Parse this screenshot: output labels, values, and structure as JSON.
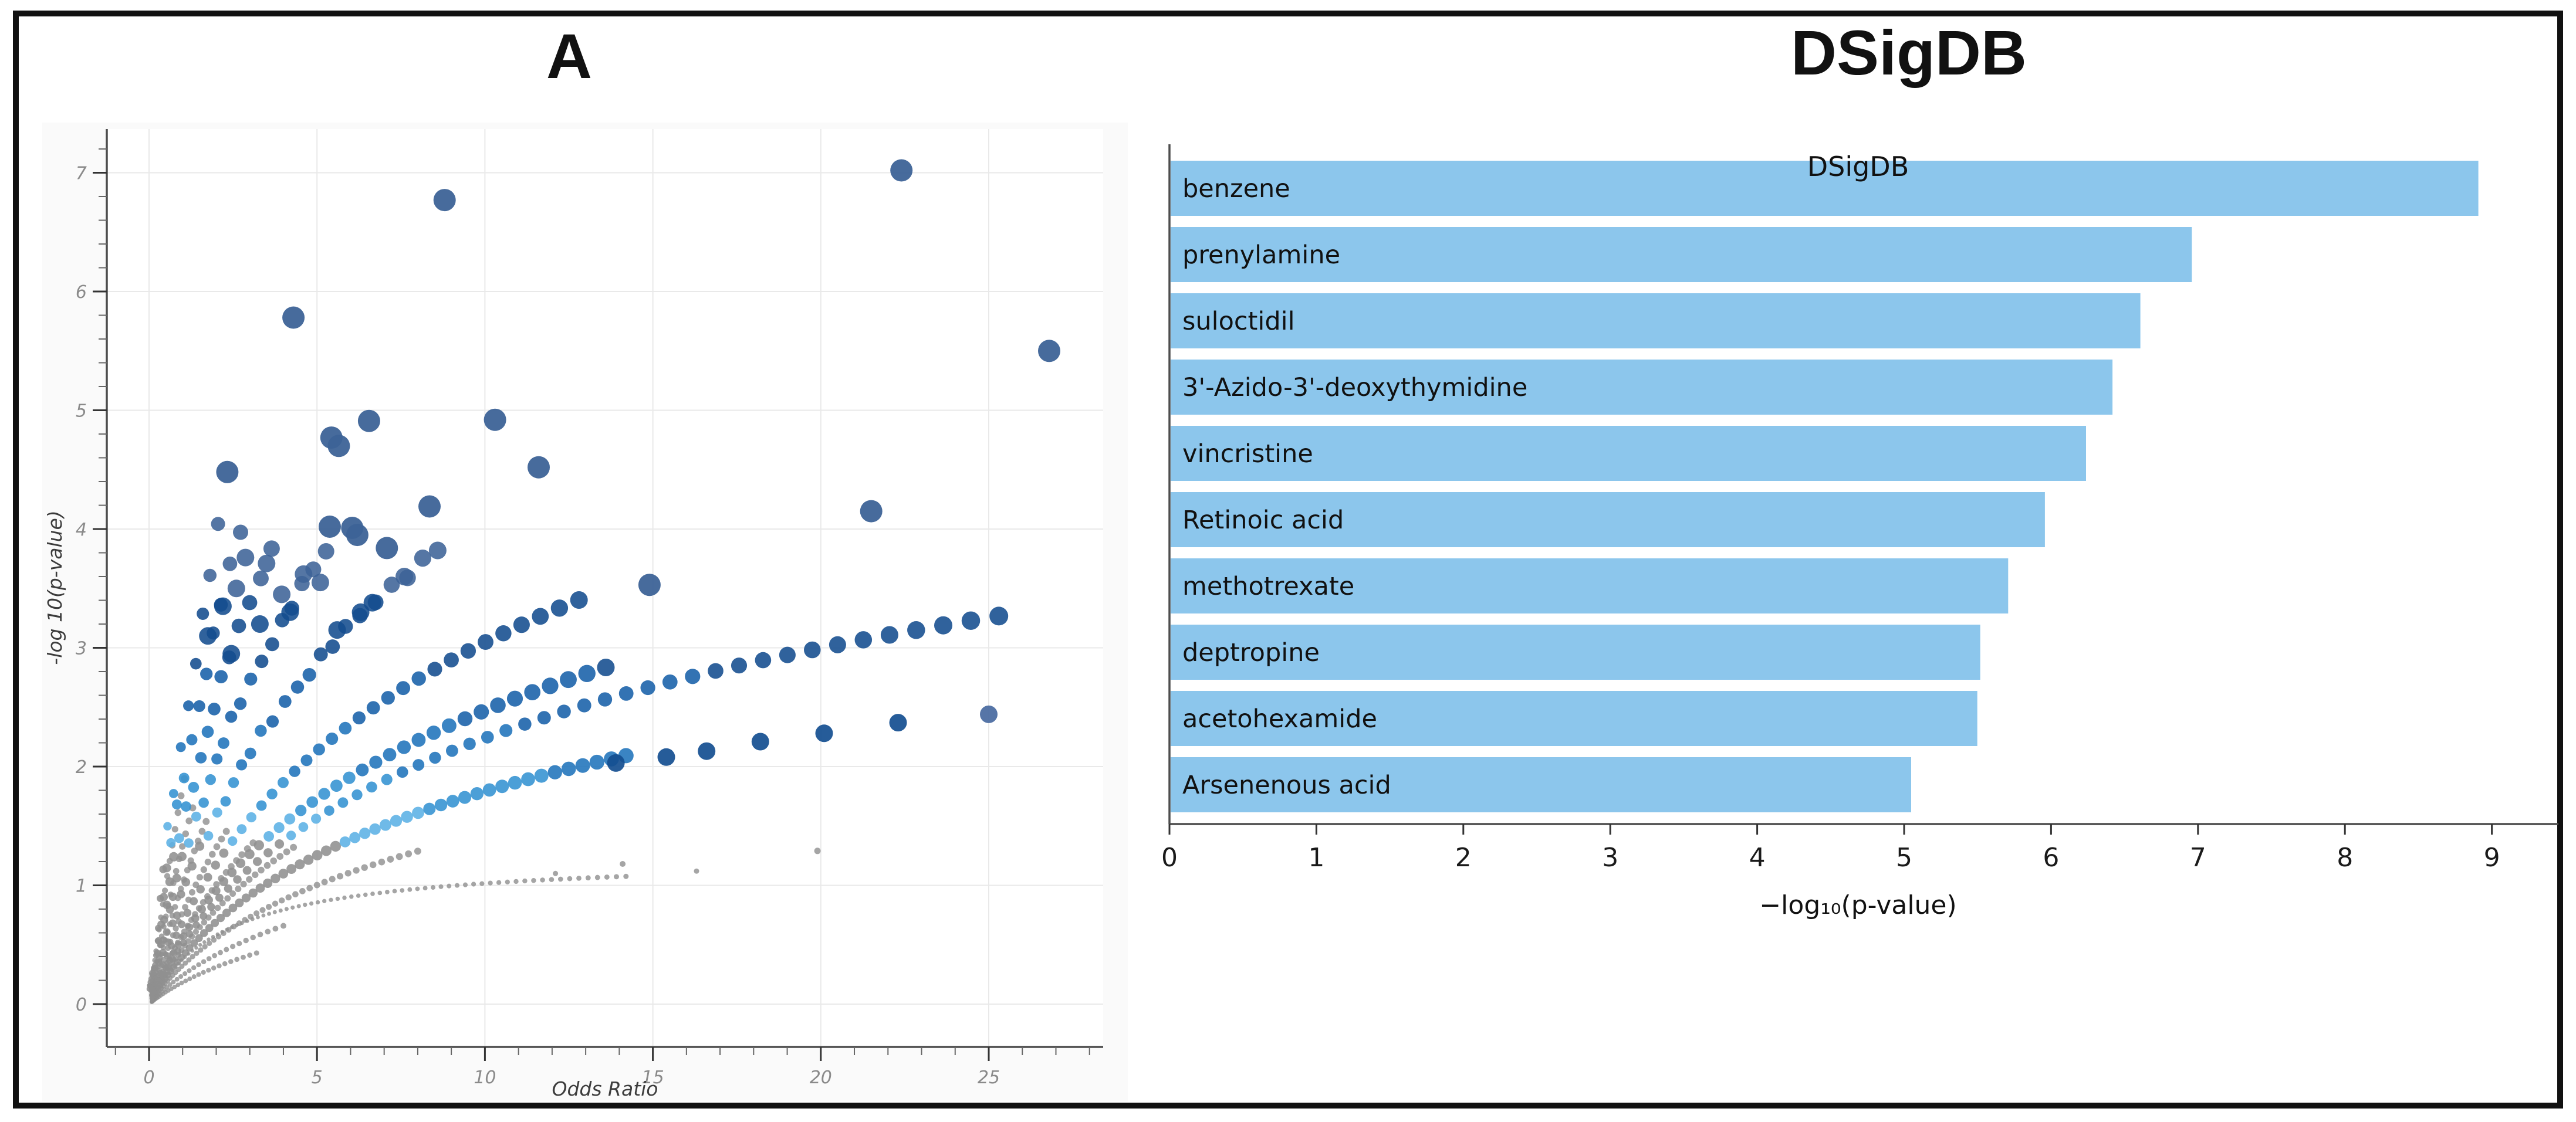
{
  "figure": {
    "border_color": "#111111",
    "background": "#ffffff",
    "panel_a_canvas": "#fafafa",
    "plot_background": "#ffffff",
    "grid_color": "#e9e9e9",
    "spine_color": "#4d4d4d"
  },
  "panel_a": {
    "title": "A",
    "xlabel": "Odds Ratio",
    "ylabel": "-log 10(p-value)",
    "x_ticks": [
      0,
      5,
      10,
      15,
      20,
      25
    ],
    "y_ticks": [
      0,
      1,
      2,
      3,
      4,
      5,
      6,
      7
    ],
    "x_minor_step": 1,
    "y_minor_step": 0.2,
    "chart_data": {
      "type": "scatter",
      "xlabel": "Odds Ratio",
      "ylabel": "-log10(p-value)",
      "xlim": [
        -1.25,
        29.6
      ],
      "ylim": [
        -0.36,
        7.73
      ],
      "grid": true,
      "significance_threshold": 1.35,
      "gray_color": "#8f8f8f",
      "color_scale": [
        {
          "max": 1.35,
          "color": "#8f8f8f"
        },
        {
          "max": 1.62,
          "color": "#5bb0e5"
        },
        {
          "max": 1.95,
          "color": "#3392d2"
        },
        {
          "max": 2.35,
          "color": "#1f73bb"
        },
        {
          "max": 2.8,
          "color": "#1760a8"
        },
        {
          "max": 3.42,
          "color": "#134c8e"
        },
        {
          "max": 99,
          "color": "#3d6397"
        }
      ],
      "arcs": [
        {
          "id": "G1",
          "form": "mm",
          "s": 1.25,
          "w": 2.3,
          "x0": 0.08,
          "x1": 14.2,
          "n": 80,
          "r0": 3,
          "r1": 4.5,
          "gray": true,
          "p": 1.6
        },
        {
          "id": "G2",
          "form": "log",
          "s": 0.8,
          "x0": 0.1,
          "x1": 8.0,
          "n": 55,
          "r0": 4,
          "r1": 6,
          "gray": true,
          "p": 1.9
        },
        {
          "id": "G3",
          "form": "log",
          "s": 1.15,
          "x0": 0.1,
          "x1": 4.3,
          "n": 40,
          "r0": 4.5,
          "r1": 6,
          "gray": true,
          "p": 1.9
        },
        {
          "id": "G4",
          "form": "log",
          "s": 1.45,
          "x0": 0.1,
          "x1": 3.1,
          "n": 34,
          "r0": 4.5,
          "r1": 6,
          "gray": true,
          "p": 1.9
        },
        {
          "id": "G5",
          "form": "log",
          "s": 1.9,
          "x0": 0.08,
          "x1": 2.3,
          "n": 30,
          "r0": 4.5,
          "r1": 6,
          "gray": true,
          "p": 1.9
        },
        {
          "id": "G6",
          "form": "log",
          "s": 2.5,
          "x0": 0.08,
          "x1": 1.7,
          "n": 26,
          "r0": 4,
          "r1": 6,
          "gray": true,
          "p": 1.9
        },
        {
          "id": "G7",
          "form": "log",
          "s": 3.3,
          "x0": 0.08,
          "x1": 1.3,
          "n": 22,
          "r0": 4,
          "r1": 6,
          "gray": true,
          "p": 1.9
        },
        {
          "id": "G8",
          "form": "log",
          "s": 4.5,
          "x0": 0.06,
          "x1": 1.05,
          "n": 20,
          "r0": 4,
          "r1": 6,
          "gray": true,
          "p": 1.9
        },
        {
          "id": "F1",
          "form": "log",
          "s": 0.45,
          "x0": 0.08,
          "x1": 3.2,
          "n": 30,
          "r0": 3.5,
          "r1": 4.5,
          "gray": true,
          "p": 1.9
        },
        {
          "id": "F2",
          "form": "log",
          "s": 0.6,
          "x0": 0.08,
          "x1": 4.0,
          "n": 32,
          "r0": 3.5,
          "r1": 5,
          "gray": true,
          "p": 1.9
        },
        {
          "id": "A3",
          "form": "log",
          "s": 1.0,
          "x0": 0.1,
          "x1": 14.2,
          "n": 62,
          "r0": 5,
          "r1": 13,
          "p": 1.9
        },
        {
          "id": "A4",
          "form": "log",
          "s": 1.25,
          "x0": 0.1,
          "x1": 25.3,
          "n": 58,
          "r0": 5,
          "r1": 16,
          "p": 1.9
        },
        {
          "id": "A5",
          "form": "log",
          "s": 1.38,
          "x0": 0.1,
          "x1": 13.6,
          "n": 46,
          "r0": 5,
          "r1": 15,
          "p": 1.9
        },
        {
          "id": "A6",
          "form": "log",
          "s": 1.7,
          "x0": 0.1,
          "x1": 12.8,
          "n": 42,
          "r0": 5,
          "r1": 15,
          "p": 1.9
        },
        {
          "id": "A7",
          "form": "log",
          "s": 2.3,
          "x0": 0.08,
          "x1": 8.6,
          "n": 34,
          "r0": 5,
          "r1": 15,
          "jitter": true,
          "p": 1.9
        },
        {
          "id": "A8",
          "form": "log",
          "s": 2.95,
          "x0": 0.08,
          "x1": 5.3,
          "n": 28,
          "r0": 5,
          "r1": 14,
          "jitter": true,
          "p": 1.9
        },
        {
          "id": "A9",
          "form": "log",
          "s": 3.7,
          "x0": 0.08,
          "x1": 3.6,
          "n": 22,
          "r0": 5,
          "r1": 14,
          "jitter": true,
          "p": 1.9
        },
        {
          "id": "A10",
          "form": "log",
          "s": 4.6,
          "x0": 0.06,
          "x1": 2.75,
          "n": 18,
          "r0": 5,
          "r1": 13,
          "jitter": true,
          "p": 1.9
        },
        {
          "id": "A11",
          "form": "log",
          "s": 5.6,
          "x0": 0.05,
          "x1": 2.1,
          "n": 15,
          "r0": 4,
          "r1": 12,
          "jitter": true,
          "p": 1.9
        }
      ],
      "sparse_row": [
        {
          "x": 13.9,
          "y": 2.03,
          "r": 15,
          "color": "#144e90"
        },
        {
          "x": 15.4,
          "y": 2.08,
          "r": 15,
          "color": "#144e90"
        },
        {
          "x": 16.6,
          "y": 2.13,
          "r": 15,
          "color": "#144e90"
        },
        {
          "x": 18.2,
          "y": 2.21,
          "r": 15,
          "color": "#144e90"
        },
        {
          "x": 20.1,
          "y": 2.28,
          "r": 15,
          "color": "#144e90"
        },
        {
          "x": 22.3,
          "y": 2.37,
          "r": 15,
          "color": "#144e90"
        },
        {
          "x": 25.0,
          "y": 2.44,
          "r": 15,
          "color": "#48699f"
        }
      ],
      "outliers": [
        {
          "x": 22.4,
          "y": 7.02
        },
        {
          "x": 8.8,
          "y": 6.77
        },
        {
          "x": 4.3,
          "y": 5.78
        },
        {
          "x": 26.8,
          "y": 5.5
        },
        {
          "x": 10.3,
          "y": 4.92
        },
        {
          "x": 6.55,
          "y": 4.91
        },
        {
          "x": 5.43,
          "y": 4.77
        },
        {
          "x": 5.65,
          "y": 4.7
        },
        {
          "x": 11.6,
          "y": 4.52
        },
        {
          "x": 2.33,
          "y": 4.48
        },
        {
          "x": 8.35,
          "y": 4.19
        },
        {
          "x": 21.5,
          "y": 4.15
        },
        {
          "x": 5.38,
          "y": 4.02
        },
        {
          "x": 6.05,
          "y": 4.01
        },
        {
          "x": 6.2,
          "y": 3.95
        },
        {
          "x": 7.08,
          "y": 3.84
        },
        {
          "x": 14.9,
          "y": 3.53
        }
      ],
      "outlier_color": "#3d6397",
      "outlier_r": 19,
      "cluster_extras": [
        {
          "x": 2.87,
          "y": 3.76
        },
        {
          "x": 3.5,
          "y": 3.71
        },
        {
          "x": 4.6,
          "y": 3.62
        },
        {
          "x": 5.1,
          "y": 3.55
        },
        {
          "x": 2.6,
          "y": 3.5
        },
        {
          "x": 3.95,
          "y": 3.45
        },
        {
          "x": 6.3,
          "y": 3.3
        },
        {
          "x": 6.65,
          "y": 3.38
        },
        {
          "x": 3.3,
          "y": 3.2
        },
        {
          "x": 4.2,
          "y": 3.3
        },
        {
          "x": 2.2,
          "y": 3.35
        },
        {
          "x": 1.75,
          "y": 3.1
        },
        {
          "x": 2.45,
          "y": 2.95
        },
        {
          "x": 5.6,
          "y": 3.15
        },
        {
          "x": 7.6,
          "y": 3.6
        }
      ],
      "cluster_extra_r": 15,
      "gray_extras": [
        {
          "x": 14.1,
          "y": 1.18,
          "r": 5
        },
        {
          "x": 16.3,
          "y": 1.12,
          "r": 4.5
        },
        {
          "x": 19.9,
          "y": 1.29,
          "r": 5.5
        },
        {
          "x": 12.1,
          "y": 1.1,
          "r": 4.5
        }
      ]
    }
  },
  "panel_b": {
    "title": "DSigDB",
    "xlabel": "−log₁₀(p-value)",
    "x_ticks": [
      0,
      1,
      2,
      3,
      4,
      5,
      6,
      7,
      8,
      9
    ],
    "chart_data": {
      "type": "bar",
      "orientation": "horizontal",
      "title": "DSigDB",
      "xlabel": "−log10(p-value)",
      "xlim": [
        0,
        9.45
      ],
      "grid": false,
      "bar_color": "#8cc6ec",
      "categories": [
        "benzene",
        "prenylamine",
        "suloctidil",
        "3'-Azido-3'-deoxythymidine",
        "vincristine",
        "Retinoic acid",
        "methotrexate",
        "deptropine",
        "acetohexamide",
        "Arsenenous acid"
      ],
      "values": [
        8.9,
        6.95,
        6.6,
        6.41,
        6.23,
        5.95,
        5.7,
        5.51,
        5.49,
        5.04
      ]
    }
  }
}
